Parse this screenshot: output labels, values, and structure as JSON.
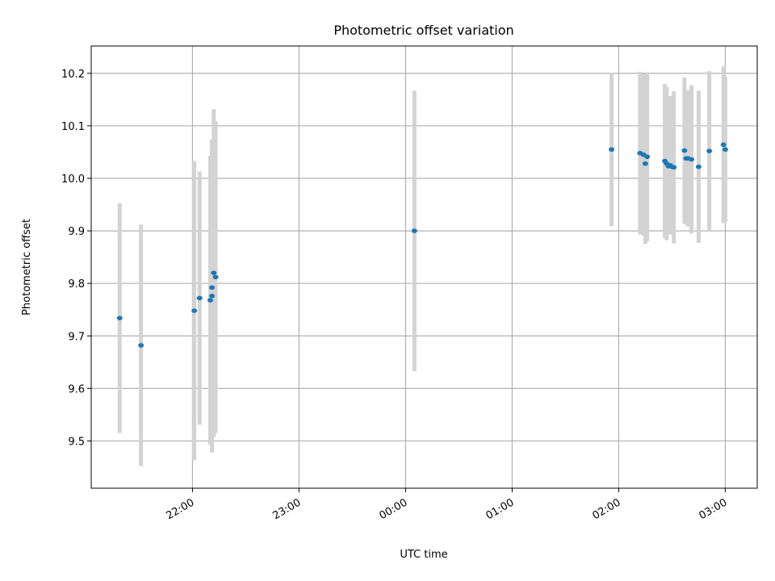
{
  "chart_data": {
    "type": "scatter",
    "title": "Photometric offset variation",
    "xlabel": "UTC time",
    "ylabel": "Photometric offset",
    "x_unit": "hours",
    "x_range": [
      21.05,
      27.3
    ],
    "ylim": [
      9.41,
      10.252
    ],
    "x_ticks": [
      {
        "x": 22.0,
        "label": "22:00"
      },
      {
        "x": 23.0,
        "label": "23:00"
      },
      {
        "x": 24.0,
        "label": "00:00"
      },
      {
        "x": 25.0,
        "label": "01:00"
      },
      {
        "x": 26.0,
        "label": "02:00"
      },
      {
        "x": 27.0,
        "label": "03:00"
      }
    ],
    "y_ticks": [
      9.5,
      9.6,
      9.7,
      9.8,
      9.9,
      10.0,
      10.1,
      10.2
    ],
    "y_tick_labels": [
      "9.5",
      "9.6",
      "9.7",
      "9.8",
      "9.9",
      "10.0",
      "10.1",
      "10.2"
    ],
    "grid": true,
    "point_color": "#1f77b4",
    "errorbar_color": "#d3d3d3",
    "points": [
      {
        "x": 21.317,
        "y": 9.734,
        "lo": 9.515,
        "hi": 9.953
      },
      {
        "x": 21.517,
        "y": 9.682,
        "lo": 9.452,
        "hi": 9.912
      },
      {
        "x": 22.017,
        "y": 9.748,
        "lo": 9.463,
        "hi": 10.033
      },
      {
        "x": 22.067,
        "y": 9.772,
        "lo": 9.531,
        "hi": 10.013
      },
      {
        "x": 22.167,
        "y": 9.768,
        "lo": 9.493,
        "hi": 10.043
      },
      {
        "x": 22.183,
        "y": 9.776,
        "lo": 9.478,
        "hi": 10.074
      },
      {
        "x": 22.183,
        "y": 9.792,
        "lo": 9.532,
        "hi": 10.052
      },
      {
        "x": 22.2,
        "y": 9.82,
        "lo": 9.508,
        "hi": 10.132
      },
      {
        "x": 22.217,
        "y": 9.812,
        "lo": 9.515,
        "hi": 10.109
      },
      {
        "x": 24.083,
        "y": 9.9,
        "lo": 9.633,
        "hi": 10.167
      },
      {
        "x": 25.933,
        "y": 10.055,
        "lo": 9.909,
        "hi": 10.201
      },
      {
        "x": 26.2,
        "y": 10.048,
        "lo": 9.893,
        "hi": 10.203
      },
      {
        "x": 26.233,
        "y": 10.045,
        "lo": 9.891,
        "hi": 10.199
      },
      {
        "x": 26.25,
        "y": 10.028,
        "lo": 9.875,
        "hi": 10.181
      },
      {
        "x": 26.267,
        "y": 10.041,
        "lo": 9.88,
        "hi": 10.202
      },
      {
        "x": 26.433,
        "y": 10.033,
        "lo": 9.886,
        "hi": 10.18
      },
      {
        "x": 26.45,
        "y": 10.028,
        "lo": 9.882,
        "hi": 10.174
      },
      {
        "x": 26.467,
        "y": 10.023,
        "lo": 9.895,
        "hi": 10.151
      },
      {
        "x": 26.483,
        "y": 10.025,
        "lo": 9.893,
        "hi": 10.157
      },
      {
        "x": 26.5,
        "y": 10.022,
        "lo": 9.894,
        "hi": 10.15
      },
      {
        "x": 26.517,
        "y": 10.021,
        "lo": 9.876,
        "hi": 10.166
      },
      {
        "x": 26.617,
        "y": 10.053,
        "lo": 9.914,
        "hi": 10.192
      },
      {
        "x": 26.633,
        "y": 10.038,
        "lo": 9.912,
        "hi": 10.164
      },
      {
        "x": 26.65,
        "y": 10.038,
        "lo": 9.908,
        "hi": 10.168
      },
      {
        "x": 26.683,
        "y": 10.036,
        "lo": 9.895,
        "hi": 10.177
      },
      {
        "x": 26.75,
        "y": 10.022,
        "lo": 9.877,
        "hi": 10.167
      },
      {
        "x": 26.85,
        "y": 10.052,
        "lo": 9.9,
        "hi": 10.204
      },
      {
        "x": 26.983,
        "y": 10.064,
        "lo": 9.915,
        "hi": 10.213
      },
      {
        "x": 27.0,
        "y": 10.055,
        "lo": 9.917,
        "hi": 10.193
      }
    ]
  }
}
